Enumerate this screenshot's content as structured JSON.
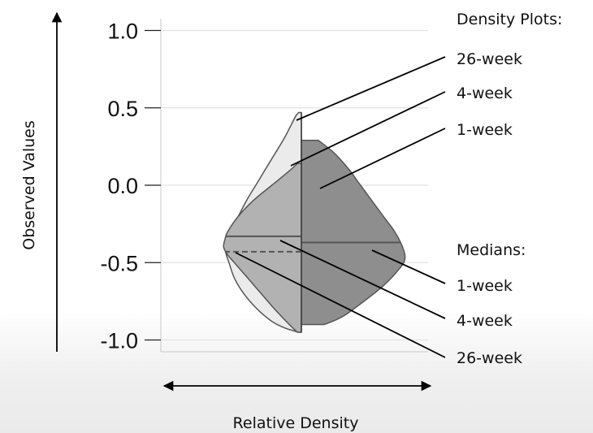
{
  "chart_data": {
    "type": "violin",
    "y_ticks": [
      "1.0",
      "0.5",
      "0.0",
      "-0.5",
      "-1.0"
    ],
    "y_tick_values": [
      1.0,
      0.5,
      0.0,
      -0.5,
      -1.0
    ],
    "ylim": [
      -1.05,
      1.05
    ],
    "ylabel": "Observed Values",
    "xlabel": "Relative Density",
    "grid": true,
    "series": [
      {
        "name": "26-week",
        "side": "left",
        "fill": "#ebebeb",
        "median": -0.43,
        "density": [
          [
            0.47,
            0.02
          ],
          [
            0.45,
            0.04
          ],
          [
            0.4,
            0.07
          ],
          [
            0.3,
            0.13
          ],
          [
            0.2,
            0.2
          ],
          [
            0.1,
            0.27
          ],
          [
            0.0,
            0.34
          ],
          [
            -0.1,
            0.41
          ],
          [
            -0.2,
            0.47
          ],
          [
            -0.3,
            0.53
          ],
          [
            -0.35,
            0.55
          ],
          [
            -0.4,
            0.57
          ],
          [
            -0.45,
            0.56
          ],
          [
            -0.5,
            0.54
          ],
          [
            -0.6,
            0.5
          ],
          [
            -0.7,
            0.43
          ],
          [
            -0.8,
            0.33
          ],
          [
            -0.88,
            0.22
          ],
          [
            -0.92,
            0.13
          ],
          [
            -0.94,
            0.06
          ],
          [
            -0.95,
            0.02
          ]
        ]
      },
      {
        "name": "4-week",
        "side": "left",
        "fill": "#b2b2b2",
        "median": -0.33,
        "density": [
          [
            0.14,
            0.03
          ],
          [
            0.1,
            0.08
          ],
          [
            0.0,
            0.22
          ],
          [
            -0.1,
            0.36
          ],
          [
            -0.2,
            0.47
          ],
          [
            -0.3,
            0.55
          ],
          [
            -0.35,
            0.57
          ],
          [
            -0.4,
            0.58
          ],
          [
            -0.45,
            0.55
          ],
          [
            -0.5,
            0.5
          ],
          [
            -0.6,
            0.4
          ],
          [
            -0.7,
            0.3
          ],
          [
            -0.8,
            0.2
          ],
          [
            -0.9,
            0.09
          ],
          [
            -0.95,
            0.03
          ]
        ]
      },
      {
        "name": "1-week",
        "side": "right",
        "fill": "#8e8e8e",
        "median": -0.37,
        "density": [
          [
            0.29,
            0.15
          ],
          [
            0.25,
            0.22
          ],
          [
            0.2,
            0.3
          ],
          [
            0.1,
            0.42
          ],
          [
            0.0,
            0.52
          ],
          [
            -0.1,
            0.62
          ],
          [
            -0.2,
            0.72
          ],
          [
            -0.3,
            0.82
          ],
          [
            -0.4,
            0.89
          ],
          [
            -0.48,
            0.91
          ],
          [
            -0.55,
            0.85
          ],
          [
            -0.65,
            0.72
          ],
          [
            -0.75,
            0.55
          ],
          [
            -0.85,
            0.36
          ],
          [
            -0.9,
            0.2
          ]
        ]
      }
    ],
    "annotations": {
      "density_header": "Density Plots:",
      "density_labels": [
        "26-week",
        "4-week",
        "1-week"
      ],
      "median_header": "Medians:",
      "median_labels": [
        "1-week",
        "4-week",
        "26-week"
      ]
    }
  }
}
